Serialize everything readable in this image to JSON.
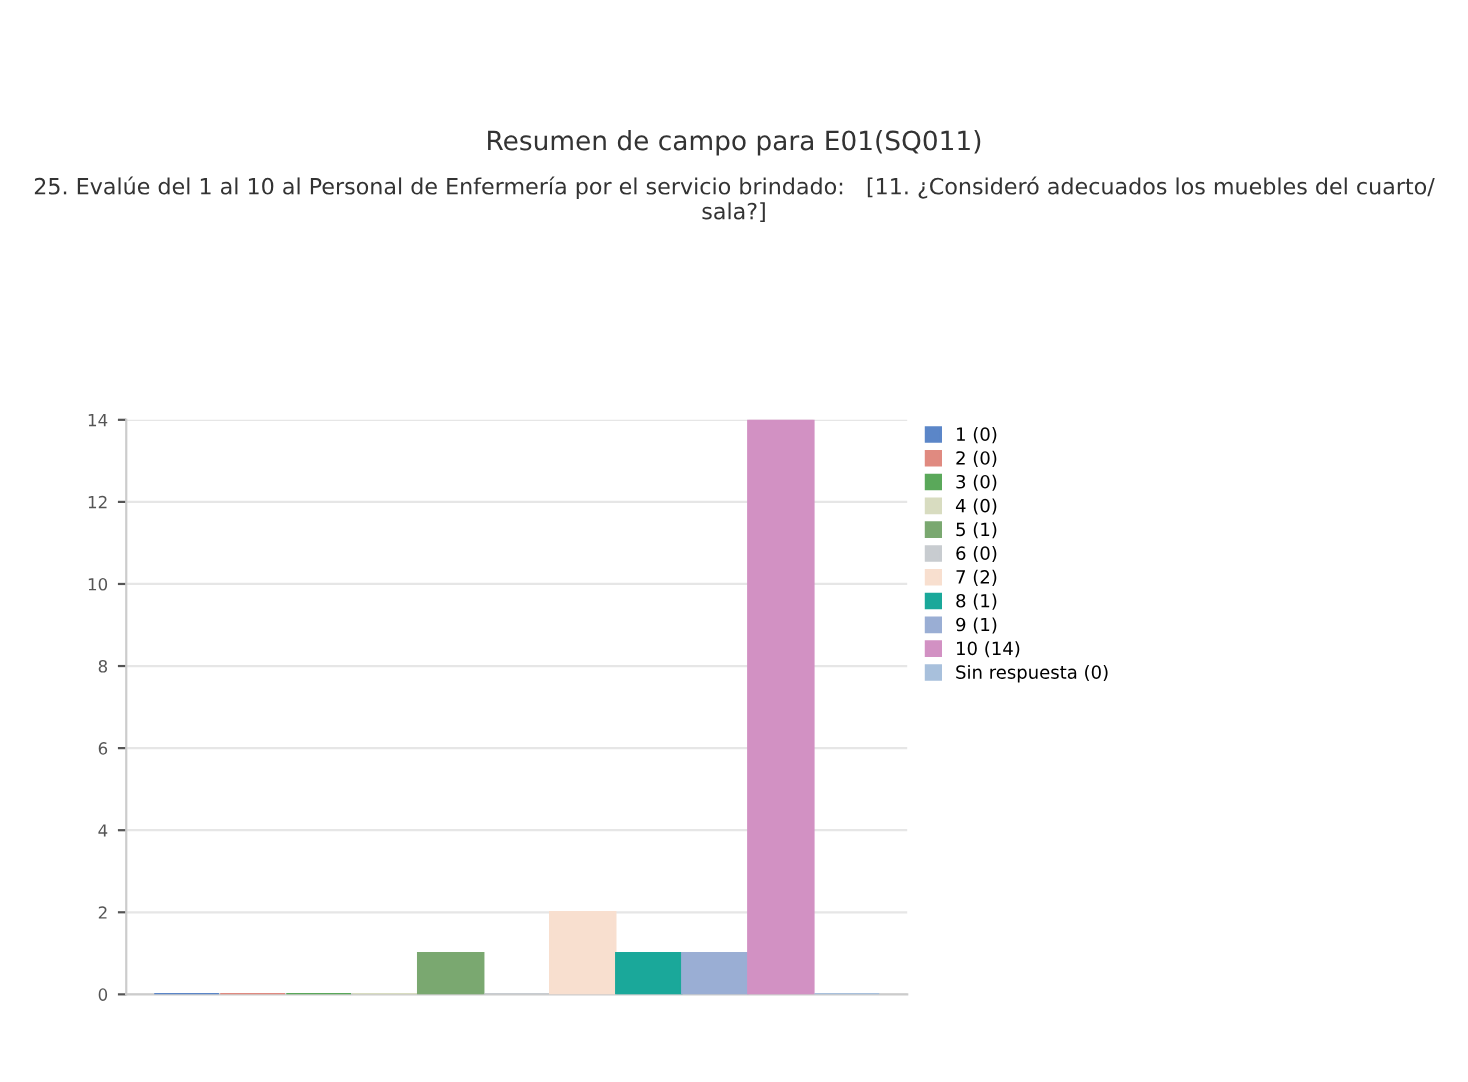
{
  "chart_data": {
    "type": "bar",
    "title": "Resumen de campo para E01(SQ011)",
    "subtitle": "25. Evalúe del 1 al 10 al Personal de Enfermería por el servicio brindado:   [11. ¿Consideró adecuados los muebles del cuarto/ sala?]",
    "categories": [
      null
    ],
    "series": [
      {
        "name": "1 (0)",
        "color": "#5b86c8",
        "values": [
          0
        ]
      },
      {
        "name": "2 (0)",
        "color": "#e08a80",
        "values": [
          0
        ]
      },
      {
        "name": "3 (0)",
        "color": "#5aa85a",
        "values": [
          0
        ]
      },
      {
        "name": "4 (0)",
        "color": "#d8dcc0",
        "values": [
          0
        ]
      },
      {
        "name": "5 (1)",
        "color": "#7aa870",
        "values": [
          1
        ]
      },
      {
        "name": "6 (0)",
        "color": "#c8ccd0",
        "values": [
          0
        ]
      },
      {
        "name": "7 (2)",
        "color": "#f8dfcf",
        "values": [
          2
        ]
      },
      {
        "name": "8 (1)",
        "color": "#1aa89a",
        "values": [
          1
        ]
      },
      {
        "name": "9 (1)",
        "color": "#9aaed4",
        "values": [
          1
        ]
      },
      {
        "name": "10 (14)",
        "color": "#d291c3",
        "values": [
          14
        ]
      },
      {
        "name": "Sin respuesta (0)",
        "color": "#a8c0dc",
        "values": [
          0
        ]
      }
    ],
    "ylim": [
      0,
      14
    ],
    "yticks": [
      0,
      2,
      4,
      6,
      8,
      10,
      12,
      14
    ],
    "grid": "y",
    "legend": "right",
    "tick_labels": "y"
  }
}
